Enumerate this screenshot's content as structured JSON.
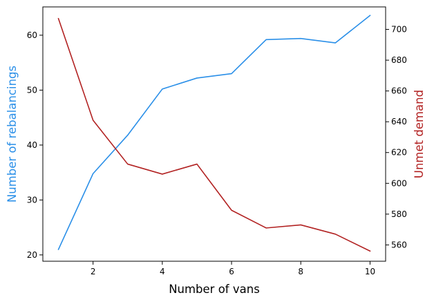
{
  "chart_data": {
    "type": "line",
    "title": "",
    "xlabel": "Number of vans",
    "ylabel_left": "Number of rebalancings",
    "ylabel_right": "Unmet demand",
    "xlim": [
      0.55,
      10.45
    ],
    "ylim_left": [
      18.85,
      65.15
    ],
    "ylim_right": [
      549.4,
      714.6
    ],
    "x_ticks": [
      2,
      4,
      6,
      8,
      10
    ],
    "y_left_ticks": [
      20,
      30,
      40,
      50,
      60
    ],
    "y_right_ticks": [
      560,
      580,
      600,
      620,
      640,
      660,
      680,
      700
    ],
    "grid": false,
    "colors": {
      "rebalancings": "#2a8fe8",
      "unmet_demand": "#b22222",
      "axis": "#000000"
    },
    "x": [
      1,
      2,
      3,
      4,
      5,
      6,
      7,
      8,
      9,
      10
    ],
    "series": [
      {
        "key": "rebalancings",
        "axis": "left",
        "color": "#2a8fe8",
        "values": [
          21.0,
          34.8,
          41.8,
          50.2,
          52.2,
          53.0,
          59.2,
          59.4,
          58.6,
          63.6
        ]
      },
      {
        "key": "unmet_demand",
        "axis": "right",
        "color": "#b22222",
        "values": [
          707,
          641,
          612.5,
          606,
          612.5,
          582.5,
          571,
          573,
          567,
          556
        ]
      }
    ]
  }
}
